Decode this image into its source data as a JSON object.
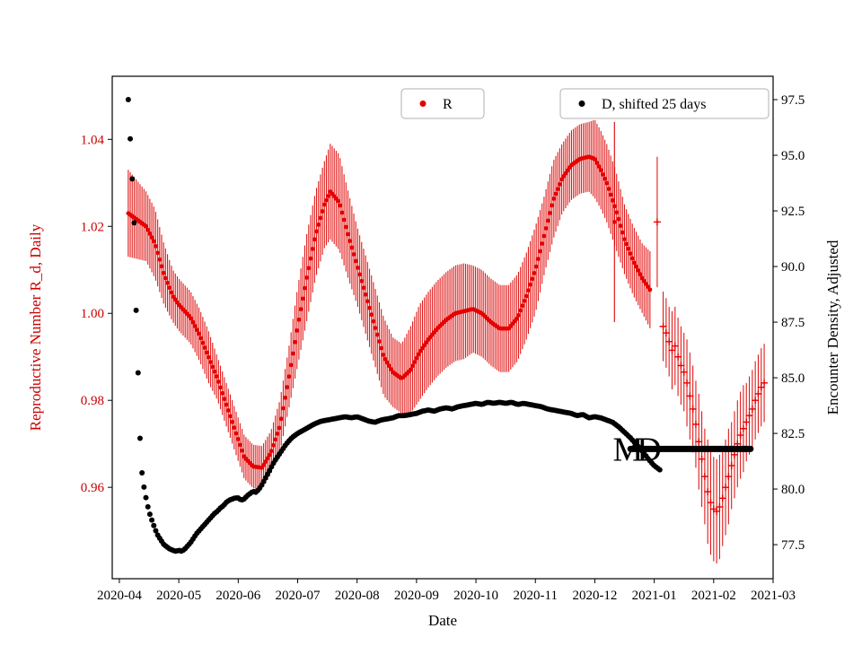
{
  "figure": {
    "background": "#ffffff",
    "frame_color": "#000000",
    "left_text_color": "#cc0000",
    "right_text_color": "#000000"
  },
  "chart_data": {
    "type": "scatter",
    "title": "",
    "xlabel": "Date",
    "ylabel_left": "Reproductive Number R_d, Daily",
    "ylabel_right": "Encounter Density, Adjusted",
    "x_unit_note": "x measured in months after the 2020-04 tick",
    "xlim": [
      -0.12,
      11.0
    ],
    "ylim_left": [
      0.939,
      1.0545
    ],
    "ylim_right": [
      75.97,
      98.55
    ],
    "grid": false,
    "x_ticks": [
      {
        "pos": 0,
        "label": "2020-04"
      },
      {
        "pos": 1,
        "label": "2020-05"
      },
      {
        "pos": 2,
        "label": "2020-06"
      },
      {
        "pos": 3,
        "label": "2020-07"
      },
      {
        "pos": 4,
        "label": "2020-08"
      },
      {
        "pos": 5,
        "label": "2020-09"
      },
      {
        "pos": 6,
        "label": "2020-10"
      },
      {
        "pos": 7,
        "label": "2020-11"
      },
      {
        "pos": 8,
        "label": "2020-12"
      },
      {
        "pos": 9,
        "label": "2021-01"
      },
      {
        "pos": 10,
        "label": "2021-02"
      },
      {
        "pos": 11,
        "label": "2021-03"
      }
    ],
    "y_ticks_left": [
      {
        "pos": 0.96,
        "label": "0.96"
      },
      {
        "pos": 0.98,
        "label": "0.98"
      },
      {
        "pos": 1.0,
        "label": "1.00"
      },
      {
        "pos": 1.02,
        "label": "1.02"
      },
      {
        "pos": 1.04,
        "label": "1.04"
      }
    ],
    "y_ticks_right": [
      {
        "pos": 77.5,
        "label": "77.5"
      },
      {
        "pos": 80.0,
        "label": "80.0"
      },
      {
        "pos": 82.5,
        "label": "82.5"
      },
      {
        "pos": 85.0,
        "label": "85.0"
      },
      {
        "pos": 87.5,
        "label": "87.5"
      },
      {
        "pos": 90.0,
        "label": "90.0"
      },
      {
        "pos": 92.5,
        "label": "92.5"
      },
      {
        "pos": 95.0,
        "label": "95.0"
      },
      {
        "pos": 97.5,
        "label": "97.5"
      }
    ],
    "legend": [
      {
        "label": "R",
        "color": "#e60000"
      },
      {
        "label": "D, shifted 25 days",
        "color": "#000000"
      }
    ],
    "series": [
      {
        "name": "R",
        "axis": "left",
        "marker": "dot",
        "color": "#e60000",
        "bar_color": "#dd0000",
        "sample_step": 0.033,
        "points_dense": [
          [
            0.15,
            1.023,
            0.01
          ],
          [
            0.3,
            1.0215,
            0.009
          ],
          [
            0.45,
            1.02,
            0.008
          ],
          [
            0.6,
            1.016,
            0.008
          ],
          [
            0.75,
            1.009,
            0.007
          ],
          [
            0.9,
            1.004,
            0.006
          ],
          [
            1.0,
            1.002,
            0.006
          ],
          [
            1.1,
            1.0005,
            0.006
          ],
          [
            1.2,
            0.999,
            0.006
          ],
          [
            1.35,
            0.995,
            0.006
          ],
          [
            1.5,
            0.99,
            0.006
          ],
          [
            1.65,
            0.985,
            0.005
          ],
          [
            1.8,
            0.979,
            0.005
          ],
          [
            1.95,
            0.973,
            0.005
          ],
          [
            2.1,
            0.967,
            0.005
          ],
          [
            2.25,
            0.9648,
            0.005
          ],
          [
            2.4,
            0.9645,
            0.005
          ],
          [
            2.55,
            0.968,
            0.005
          ],
          [
            2.7,
            0.974,
            0.006
          ],
          [
            2.85,
            0.985,
            0.007
          ],
          [
            3.0,
            0.997,
            0.009
          ],
          [
            3.15,
            1.008,
            0.01
          ],
          [
            3.3,
            1.018,
            0.01
          ],
          [
            3.45,
            1.025,
            0.01
          ],
          [
            3.55,
            1.028,
            0.011
          ],
          [
            3.7,
            1.0255,
            0.011
          ],
          [
            3.85,
            1.018,
            0.01
          ],
          [
            4.0,
            1.011,
            0.009
          ],
          [
            4.15,
            1.004,
            0.009
          ],
          [
            4.3,
            0.997,
            0.009
          ],
          [
            4.45,
            0.99,
            0.009
          ],
          [
            4.6,
            0.9865,
            0.008
          ],
          [
            4.75,
            0.985,
            0.008
          ],
          [
            4.9,
            0.987,
            0.01
          ],
          [
            5.05,
            0.991,
            0.011
          ],
          [
            5.2,
            0.994,
            0.011
          ],
          [
            5.35,
            0.9965,
            0.011
          ],
          [
            5.5,
            0.9985,
            0.011
          ],
          [
            5.65,
            1.0,
            0.011
          ],
          [
            5.8,
            1.0005,
            0.011
          ],
          [
            5.95,
            1.001,
            0.01
          ],
          [
            6.1,
            1.0,
            0.01
          ],
          [
            6.25,
            0.998,
            0.01
          ],
          [
            6.4,
            0.9965,
            0.01
          ],
          [
            6.55,
            0.9965,
            0.01
          ],
          [
            6.7,
            0.999,
            0.01
          ],
          [
            6.85,
            1.004,
            0.01
          ],
          [
            7.0,
            1.01,
            0.01
          ],
          [
            7.15,
            1.018,
            0.009
          ],
          [
            7.3,
            1.026,
            0.009
          ],
          [
            7.45,
            1.031,
            0.008
          ],
          [
            7.6,
            1.034,
            0.008
          ],
          [
            7.75,
            1.0355,
            0.008
          ],
          [
            7.9,
            1.036,
            0.008
          ],
          [
            8.0,
            1.0355,
            0.009
          ],
          [
            8.1,
            1.033,
            0.009
          ],
          [
            8.2,
            1.03,
            0.009
          ],
          [
            8.35,
            1.024,
            0.009
          ],
          [
            8.5,
            1.017,
            0.008
          ],
          [
            8.65,
            1.012,
            0.008
          ],
          [
            8.8,
            1.008,
            0.008
          ],
          [
            8.95,
            1.005,
            0.009
          ]
        ],
        "outliers": [
          [
            8.33,
            1.021,
            0.023
          ]
        ],
        "points_sparse": [
          [
            9.05,
            1.021,
            0.015
          ],
          [
            9.15,
            0.997,
            0.008
          ],
          [
            9.2,
            0.9955,
            0.008
          ],
          [
            9.25,
            0.9935,
            0.008
          ],
          [
            9.3,
            0.9915,
            0.009
          ],
          [
            9.35,
            0.9925,
            0.009
          ],
          [
            9.4,
            0.99,
            0.009
          ],
          [
            9.45,
            0.988,
            0.009
          ],
          [
            9.5,
            0.9865,
            0.009
          ],
          [
            9.55,
            0.984,
            0.01
          ],
          [
            9.6,
            0.981,
            0.01
          ],
          [
            9.65,
            0.978,
            0.01
          ],
          [
            9.7,
            0.9745,
            0.01
          ],
          [
            9.75,
            0.9705,
            0.011
          ],
          [
            9.8,
            0.9665,
            0.011
          ],
          [
            9.85,
            0.9625,
            0.011
          ],
          [
            9.9,
            0.959,
            0.012
          ],
          [
            9.95,
            0.9565,
            0.012
          ],
          [
            10.0,
            0.955,
            0.012
          ],
          [
            10.05,
            0.9545,
            0.012
          ],
          [
            10.1,
            0.9555,
            0.012
          ],
          [
            10.15,
            0.9575,
            0.011
          ],
          [
            10.2,
            0.96,
            0.011
          ],
          [
            10.25,
            0.9625,
            0.011
          ],
          [
            10.3,
            0.965,
            0.01
          ],
          [
            10.35,
            0.9675,
            0.01
          ],
          [
            10.4,
            0.97,
            0.01
          ],
          [
            10.45,
            0.972,
            0.01
          ],
          [
            10.5,
            0.9735,
            0.01
          ],
          [
            10.55,
            0.975,
            0.009
          ],
          [
            10.6,
            0.9765,
            0.009
          ],
          [
            10.65,
            0.978,
            0.009
          ],
          [
            10.7,
            0.98,
            0.009
          ],
          [
            10.75,
            0.9815,
            0.009
          ],
          [
            10.8,
            0.983,
            0.009
          ],
          [
            10.85,
            0.984,
            0.009
          ]
        ]
      },
      {
        "name": "D, shifted 25 days",
        "axis": "right",
        "marker": "dot",
        "color": "#000000",
        "sample_step": 0.033,
        "points": [
          [
            0.15,
            97.5
          ],
          [
            0.18,
            95.9
          ],
          [
            0.21,
            94.3
          ],
          [
            0.25,
            91.9
          ],
          [
            0.28,
            88.2
          ],
          [
            0.32,
            84.8
          ],
          [
            0.36,
            81.2
          ],
          [
            0.4,
            80.3
          ],
          [
            0.44,
            79.7
          ],
          [
            0.48,
            79.2
          ],
          [
            0.52,
            78.8
          ],
          [
            0.56,
            78.5
          ],
          [
            0.6,
            78.2
          ],
          [
            0.65,
            77.9
          ],
          [
            0.7,
            77.7
          ],
          [
            0.75,
            77.5
          ],
          [
            0.8,
            77.4
          ],
          [
            0.85,
            77.3
          ],
          [
            0.9,
            77.25
          ],
          [
            0.95,
            77.2
          ],
          [
            1.0,
            77.25
          ],
          [
            1.05,
            77.2
          ],
          [
            1.1,
            77.3
          ],
          [
            1.15,
            77.45
          ],
          [
            1.2,
            77.6
          ],
          [
            1.25,
            77.8
          ],
          [
            1.3,
            78.0
          ],
          [
            1.35,
            78.15
          ],
          [
            1.4,
            78.3
          ],
          [
            1.45,
            78.45
          ],
          [
            1.5,
            78.6
          ],
          [
            1.55,
            78.75
          ],
          [
            1.6,
            78.9
          ],
          [
            1.65,
            79.0
          ],
          [
            1.7,
            79.15
          ],
          [
            1.75,
            79.25
          ],
          [
            1.8,
            79.4
          ],
          [
            1.85,
            79.5
          ],
          [
            1.9,
            79.55
          ],
          [
            1.95,
            79.6
          ],
          [
            2.0,
            79.6
          ],
          [
            2.05,
            79.5
          ],
          [
            2.1,
            79.55
          ],
          [
            2.15,
            79.7
          ],
          [
            2.2,
            79.8
          ],
          [
            2.25,
            79.9
          ],
          [
            2.3,
            79.85
          ],
          [
            2.35,
            80.0
          ],
          [
            2.4,
            80.2
          ],
          [
            2.45,
            80.45
          ],
          [
            2.5,
            80.7
          ],
          [
            2.55,
            80.95
          ],
          [
            2.6,
            81.2
          ],
          [
            2.65,
            81.4
          ],
          [
            2.7,
            81.6
          ],
          [
            2.75,
            81.8
          ],
          [
            2.8,
            82.0
          ],
          [
            2.85,
            82.15
          ],
          [
            2.9,
            82.3
          ],
          [
            2.95,
            82.4
          ],
          [
            3.0,
            82.5
          ],
          [
            3.1,
            82.65
          ],
          [
            3.2,
            82.8
          ],
          [
            3.3,
            82.95
          ],
          [
            3.4,
            83.05
          ],
          [
            3.5,
            83.1
          ],
          [
            3.6,
            83.15
          ],
          [
            3.7,
            83.2
          ],
          [
            3.8,
            83.25
          ],
          [
            3.9,
            83.2
          ],
          [
            4.0,
            83.25
          ],
          [
            4.1,
            83.15
          ],
          [
            4.2,
            83.05
          ],
          [
            4.3,
            83.0
          ],
          [
            4.4,
            83.1
          ],
          [
            4.5,
            83.15
          ],
          [
            4.6,
            83.2
          ],
          [
            4.7,
            83.3
          ],
          [
            4.8,
            83.3
          ],
          [
            4.9,
            83.35
          ],
          [
            5.0,
            83.4
          ],
          [
            5.1,
            83.5
          ],
          [
            5.2,
            83.55
          ],
          [
            5.3,
            83.5
          ],
          [
            5.4,
            83.6
          ],
          [
            5.5,
            83.65
          ],
          [
            5.6,
            83.6
          ],
          [
            5.7,
            83.7
          ],
          [
            5.8,
            83.75
          ],
          [
            5.9,
            83.8
          ],
          [
            6.0,
            83.85
          ],
          [
            6.1,
            83.8
          ],
          [
            6.2,
            83.9
          ],
          [
            6.3,
            83.85
          ],
          [
            6.4,
            83.9
          ],
          [
            6.5,
            83.85
          ],
          [
            6.6,
            83.9
          ],
          [
            6.7,
            83.8
          ],
          [
            6.8,
            83.85
          ],
          [
            6.9,
            83.8
          ],
          [
            7.0,
            83.75
          ],
          [
            7.1,
            83.7
          ],
          [
            7.2,
            83.6
          ],
          [
            7.3,
            83.55
          ],
          [
            7.4,
            83.5
          ],
          [
            7.5,
            83.45
          ],
          [
            7.6,
            83.4
          ],
          [
            7.7,
            83.3
          ],
          [
            7.8,
            83.35
          ],
          [
            7.9,
            83.2
          ],
          [
            8.0,
            83.25
          ],
          [
            8.1,
            83.2
          ],
          [
            8.2,
            83.1
          ],
          [
            8.3,
            83.0
          ],
          [
            8.4,
            82.8
          ],
          [
            8.5,
            82.55
          ],
          [
            8.6,
            82.3
          ],
          [
            8.7,
            82.0
          ],
          [
            8.8,
            81.7
          ],
          [
            8.9,
            81.35
          ],
          [
            9.0,
            81.05
          ],
          [
            9.05,
            80.95
          ],
          [
            9.1,
            80.85
          ]
        ],
        "flat_segment": {
          "x_start": 8.6,
          "x_end": 10.62,
          "value": 81.8
        }
      }
    ],
    "annotations": [
      {
        "text": "MD",
        "x": 8.66,
        "y": 81.8,
        "axis": "right",
        "fontsize": 38,
        "color": "#000000"
      }
    ]
  }
}
